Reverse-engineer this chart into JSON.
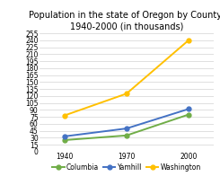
{
  "title": "Population in the state of Oregon by County,\n1940-2000 (in thousands)",
  "x": [
    1940,
    1970,
    2000
  ],
  "series": [
    {
      "label": "Columbia",
      "values": [
        25,
        35,
        80
      ],
      "color": "#70ad47",
      "marker": "o"
    },
    {
      "label": "Yamhill",
      "values": [
        33,
        50,
        92
      ],
      "color": "#4472c4",
      "marker": "o"
    },
    {
      "label": "Washington",
      "values": [
        78,
        125,
        240
      ],
      "color": "#ffc000",
      "marker": "o"
    }
  ],
  "ylim": [
    0,
    255
  ],
  "yticks": [
    0,
    15,
    30,
    45,
    60,
    75,
    90,
    105,
    120,
    135,
    150,
    165,
    180,
    195,
    210,
    225,
    240,
    255
  ],
  "xticks": [
    1940,
    1970,
    2000
  ],
  "grid_color": "#d3d3d3",
  "background_color": "#ffffff",
  "title_fontsize": 7.0,
  "tick_fontsize": 5.5,
  "legend_fontsize": 5.5,
  "linewidth": 1.4,
  "markersize": 3.5
}
